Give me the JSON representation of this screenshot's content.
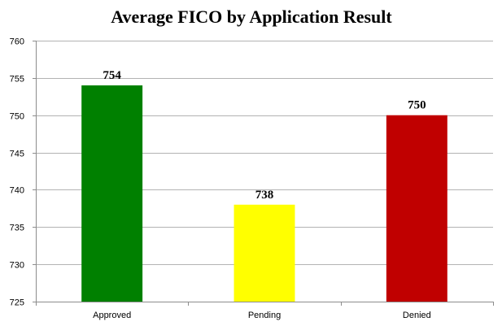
{
  "chart_data": {
    "type": "bar",
    "title": "Average FICO by Application Result",
    "categories": [
      "Approved",
      "Pending",
      "Denied"
    ],
    "values": [
      754,
      738,
      750
    ],
    "data_labels": [
      "754",
      "738",
      "750"
    ],
    "colors": [
      "#008000",
      "#ffff00",
      "#c00000"
    ],
    "xlabel": "",
    "ylabel": "",
    "ylim": [
      725,
      760
    ],
    "yticks": [
      725,
      730,
      735,
      740,
      745,
      750,
      755,
      760
    ],
    "grid": true,
    "legend": "none"
  }
}
